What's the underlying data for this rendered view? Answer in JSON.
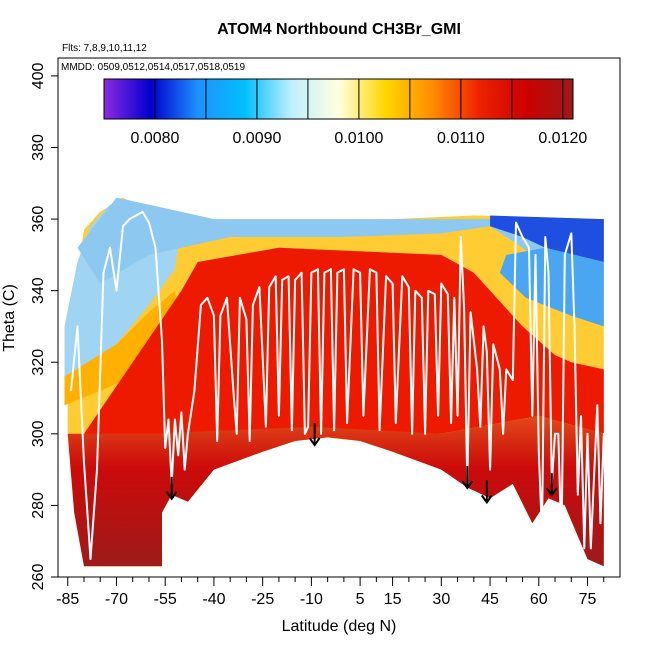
{
  "chart_data": {
    "type": "heatmap",
    "title": "ATOM4 Northbound CH3Br_GMI",
    "flights_note": "Flts: 7,8,9,10,11,12",
    "dates_note": "MMDD: 0509,0512,0514,0517,0518,0519",
    "xlabel": "Latitude (deg N)",
    "ylabel": "Theta (C)",
    "xlim": [
      -88,
      85
    ],
    "ylim": [
      260,
      405
    ],
    "x_ticks": [
      -85,
      -70,
      -55,
      -40,
      -25,
      -10,
      5,
      15,
      30,
      45,
      60,
      75
    ],
    "x_minor_ticks": [
      -80,
      -75,
      -65,
      -60,
      -50,
      -45,
      -35,
      -30,
      -20,
      -15,
      -5,
      0,
      10,
      20,
      25,
      35,
      40,
      50,
      55,
      65,
      70,
      80
    ],
    "y_ticks": [
      260,
      280,
      300,
      320,
      340,
      360,
      380,
      400
    ],
    "colorbar": {
      "min": 0.0075,
      "max": 0.0121,
      "tick_labels": [
        "0.0080",
        "0.0090",
        "0.0100",
        "0.0110",
        "0.0120"
      ],
      "tick_values": [
        0.008,
        0.009,
        0.01,
        0.011,
        0.012
      ],
      "line_values": [
        0.008,
        0.0085,
        0.009,
        0.0095,
        0.01,
        0.0105,
        0.011,
        0.0115,
        0.012
      ],
      "colors": [
        "#8a2be2",
        "#0000cd",
        "#1e90ff",
        "#00bfff",
        "#bfefff",
        "#ffffe0",
        "#ffd700",
        "#ff8c00",
        "#ee2200",
        "#cc0000",
        "#9e1a1a"
      ]
    },
    "field": {
      "bottom_boundary": [
        [
          -85,
          300
        ],
        [
          -83,
          278
        ],
        [
          -80,
          263
        ],
        [
          -56,
          263
        ],
        [
          -56,
          278
        ],
        [
          -53,
          283
        ],
        [
          -48,
          281
        ],
        [
          -40,
          290
        ],
        [
          -25,
          295
        ],
        [
          -15,
          298
        ],
        [
          -5,
          299
        ],
        [
          5,
          298
        ],
        [
          15,
          295
        ],
        [
          30,
          290
        ],
        [
          38,
          285
        ],
        [
          45,
          282
        ],
        [
          52,
          286
        ],
        [
          58,
          275
        ],
        [
          63,
          282
        ],
        [
          68,
          280
        ],
        [
          75,
          265
        ],
        [
          80,
          263
        ]
      ],
      "top_boundary": [
        [
          -85,
          328
        ],
        [
          -82,
          345
        ],
        [
          -80,
          357
        ],
        [
          -75,
          362
        ],
        [
          -68,
          366
        ],
        [
          -60,
          362
        ],
        [
          -40,
          360
        ],
        [
          -30,
          359
        ],
        [
          15,
          360
        ],
        [
          40,
          361
        ],
        [
          80,
          360
        ]
      ],
      "hot_core": [
        [
          -50,
          340
        ],
        [
          -45,
          348
        ],
        [
          -20,
          352
        ],
        [
          30,
          350
        ],
        [
          40,
          345
        ],
        [
          55,
          330
        ],
        [
          65,
          322
        ],
        [
          70,
          320
        ],
        [
          80,
          318
        ],
        [
          80,
          300
        ],
        [
          60,
          305
        ],
        [
          30,
          300
        ],
        [
          -10,
          300
        ],
        [
          -50,
          295
        ],
        [
          -80,
          300
        ]
      ],
      "cold_cap": [
        [
          -82,
          352
        ],
        [
          -70,
          366
        ],
        [
          -55,
          363
        ],
        [
          -40,
          360
        ],
        [
          30,
          360
        ],
        [
          45,
          360
        ],
        [
          60,
          360
        ],
        [
          80,
          360
        ],
        [
          80,
          342
        ],
        [
          65,
          345
        ],
        [
          55,
          352
        ],
        [
          45,
          358
        ],
        [
          30,
          356
        ],
        [
          0,
          355
        ],
        [
          -35,
          355
        ],
        [
          -60,
          350
        ],
        [
          -75,
          342
        ]
      ]
    },
    "flight_track": [
      [
        -84,
        312
      ],
      [
        -82,
        330
      ],
      [
        -80,
        292
      ],
      [
        -78,
        265
      ],
      [
        -76,
        290
      ],
      [
        -74,
        345
      ],
      [
        -72,
        352
      ],
      [
        -70,
        340
      ],
      [
        -68,
        358
      ],
      [
        -66,
        360
      ],
      [
        -62,
        362
      ],
      [
        -60,
        359
      ],
      [
        -58,
        352
      ],
      [
        -56,
        326
      ],
      [
        -55,
        296
      ],
      [
        -54,
        304
      ],
      [
        -53,
        286
      ],
      [
        -52,
        304
      ],
      [
        -51,
        294
      ],
      [
        -50,
        306
      ],
      [
        -49,
        290
      ],
      [
        -48,
        300
      ],
      [
        -46,
        312
      ],
      [
        -44,
        336
      ],
      [
        -42,
        338
      ],
      [
        -40,
        333
      ],
      [
        -39,
        298
      ],
      [
        -38,
        333
      ],
      [
        -36,
        338
      ],
      [
        -34,
        312
      ],
      [
        -33,
        300
      ],
      [
        -32,
        338
      ],
      [
        -30,
        332
      ],
      [
        -29,
        298
      ],
      [
        -28,
        336
      ],
      [
        -26,
        341
      ],
      [
        -24,
        302
      ],
      [
        -23,
        341
      ],
      [
        -21,
        344
      ],
      [
        -20,
        305
      ],
      [
        -19,
        343
      ],
      [
        -17,
        344
      ],
      [
        -16,
        301
      ],
      [
        -15,
        343
      ],
      [
        -13,
        345
      ],
      [
        -12,
        300
      ],
      [
        -11,
        302
      ],
      [
        -10,
        345
      ],
      [
        -8,
        346
      ],
      [
        -7,
        300
      ],
      [
        -6,
        345
      ],
      [
        -4,
        346
      ],
      [
        -3,
        301
      ],
      [
        -2,
        345
      ],
      [
        0,
        346
      ],
      [
        1,
        303
      ],
      [
        3,
        346
      ],
      [
        5,
        345
      ],
      [
        6,
        305
      ],
      [
        8,
        346
      ],
      [
        10,
        345
      ],
      [
        11,
        301
      ],
      [
        13,
        344
      ],
      [
        15,
        342
      ],
      [
        16,
        303
      ],
      [
        18,
        344
      ],
      [
        20,
        341
      ],
      [
        21,
        300
      ],
      [
        22,
        340
      ],
      [
        24,
        338
      ],
      [
        25,
        300
      ],
      [
        26,
        340
      ],
      [
        28,
        339
      ],
      [
        29,
        305
      ],
      [
        30,
        342
      ],
      [
        32,
        339
      ],
      [
        33,
        303
      ],
      [
        34,
        338
      ],
      [
        35,
        305
      ],
      [
        36,
        355
      ],
      [
        37,
        335
      ],
      [
        38,
        286
      ],
      [
        39,
        334
      ],
      [
        41,
        318
      ],
      [
        42,
        302
      ],
      [
        43,
        330
      ],
      [
        44,
        323
      ],
      [
        45,
        290
      ],
      [
        46,
        325
      ],
      [
        48,
        318
      ],
      [
        49,
        300
      ],
      [
        50,
        318
      ],
      [
        52,
        315
      ],
      [
        53,
        359
      ],
      [
        55,
        355
      ],
      [
        57,
        352
      ],
      [
        58,
        305
      ],
      [
        59,
        350
      ],
      [
        60,
        295
      ],
      [
        61,
        272
      ],
      [
        62,
        355
      ],
      [
        63,
        345
      ],
      [
        64,
        286
      ],
      [
        65,
        300
      ],
      [
        66,
        300
      ],
      [
        67,
        268
      ],
      [
        68,
        350
      ],
      [
        70,
        356
      ],
      [
        71,
        330
      ],
      [
        72,
        283
      ],
      [
        73,
        305
      ],
      [
        74,
        268
      ],
      [
        75,
        300
      ],
      [
        76,
        268
      ],
      [
        78,
        308
      ],
      [
        79,
        275
      ],
      [
        80,
        300
      ],
      [
        81,
        270
      ]
    ],
    "arrows": [
      [
        -53,
        288
      ],
      [
        -9,
        303
      ],
      [
        38,
        291
      ],
      [
        44,
        287
      ],
      [
        64,
        289
      ]
    ]
  }
}
